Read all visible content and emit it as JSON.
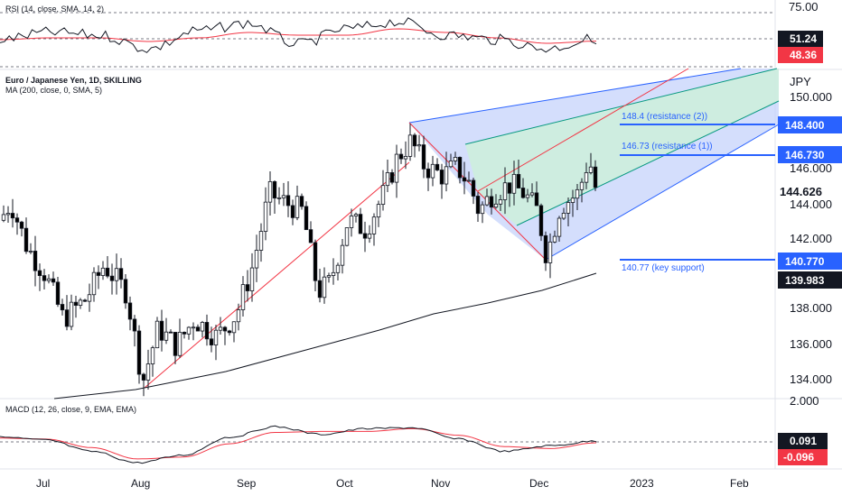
{
  "rsi_panel": {
    "label": "RSI (14, close, SMA, 14, 2)",
    "level_label": "75.00",
    "value_rsi": "51.24",
    "value_sma": "48.36"
  },
  "main_panel": {
    "title": "Euro / Japanese Yen, 1D, SKILLING",
    "ma_label": "MA (200, close, 0, SMA, 5)",
    "currency": "JPY",
    "y_ticks": [
      "150.000",
      "146.000",
      "144.000",
      "142.000",
      "138.000",
      "136.000",
      "134.000"
    ],
    "last_price": "144.626",
    "ma_value": "139.983",
    "levels": [
      {
        "value": "148.400",
        "annotation": "148.4 (resistance (2))"
      },
      {
        "value": "146.730",
        "annotation": "146.73 (resistance (1))"
      },
      {
        "value": "140.770",
        "annotation": "140.77 (key support)"
      }
    ]
  },
  "macd_panel": {
    "label": "MACD (12, 26, close, 9, EMA, EMA)",
    "level_label": "2.000",
    "value_macd": "0.091",
    "value_signal": "-0.096"
  },
  "x_axis": {
    "labels": [
      "Jul",
      "Aug",
      "Sep",
      "Oct",
      "Nov",
      "Dec",
      "2023",
      "Feb"
    ]
  },
  "colors": {
    "up": "#ffffff",
    "down": "#000000",
    "level_line": "#2962ff",
    "pitchfork_blue": "#c5d3fb",
    "pitchfork_green": "#cdeedd",
    "median_red": "#f23645",
    "rsi_sma": "#f23645",
    "macd_signal": "#f23645"
  },
  "chart_data": [
    {
      "type": "line",
      "name_ref": "rsi",
      "x": [
        "2022-06-20",
        "2022-07-01",
        "2022-07-15",
        "2022-08-01",
        "2022-08-15",
        "2022-09-01",
        "2022-09-15",
        "2022-10-01",
        "2022-10-15",
        "2022-11-01",
        "2022-11-15",
        "2022-12-01",
        "2022-12-15"
      ],
      "series": [
        {
          "values": [
            50,
            58,
            55,
            40,
            60,
            68,
            45,
            62,
            70,
            55,
            50,
            40,
            51.24
          ]
        },
        {
          "values": [
            50,
            52,
            52,
            48,
            52,
            58,
            55,
            55,
            62,
            58,
            52,
            46,
            48.36
          ]
        }
      ],
      "ylim": [
        20,
        80
      ]
    },
    {
      "type": "candlestick",
      "name_ref": "price",
      "ylim": [
        133,
        151
      ],
      "ma200_end": 139.983,
      "last_close": 144.626
    },
    {
      "type": "line",
      "name_ref": "macd",
      "series": [
        {
          "values": [
            0.5,
            0.2,
            -1.0,
            -2.2,
            -1.4,
            0.5,
            1.6,
            0.8,
            1.4,
            1.5,
            0.3,
            -1.0,
            -0.4,
            0.091
          ]
        },
        {
          "values": [
            0.4,
            0.3,
            -0.6,
            -1.8,
            -1.6,
            -0.2,
            1.0,
            1.1,
            1.1,
            1.4,
            0.7,
            -0.5,
            -0.7,
            -0.096
          ]
        }
      ],
      "ylim": [
        -3,
        2.5
      ]
    }
  ]
}
